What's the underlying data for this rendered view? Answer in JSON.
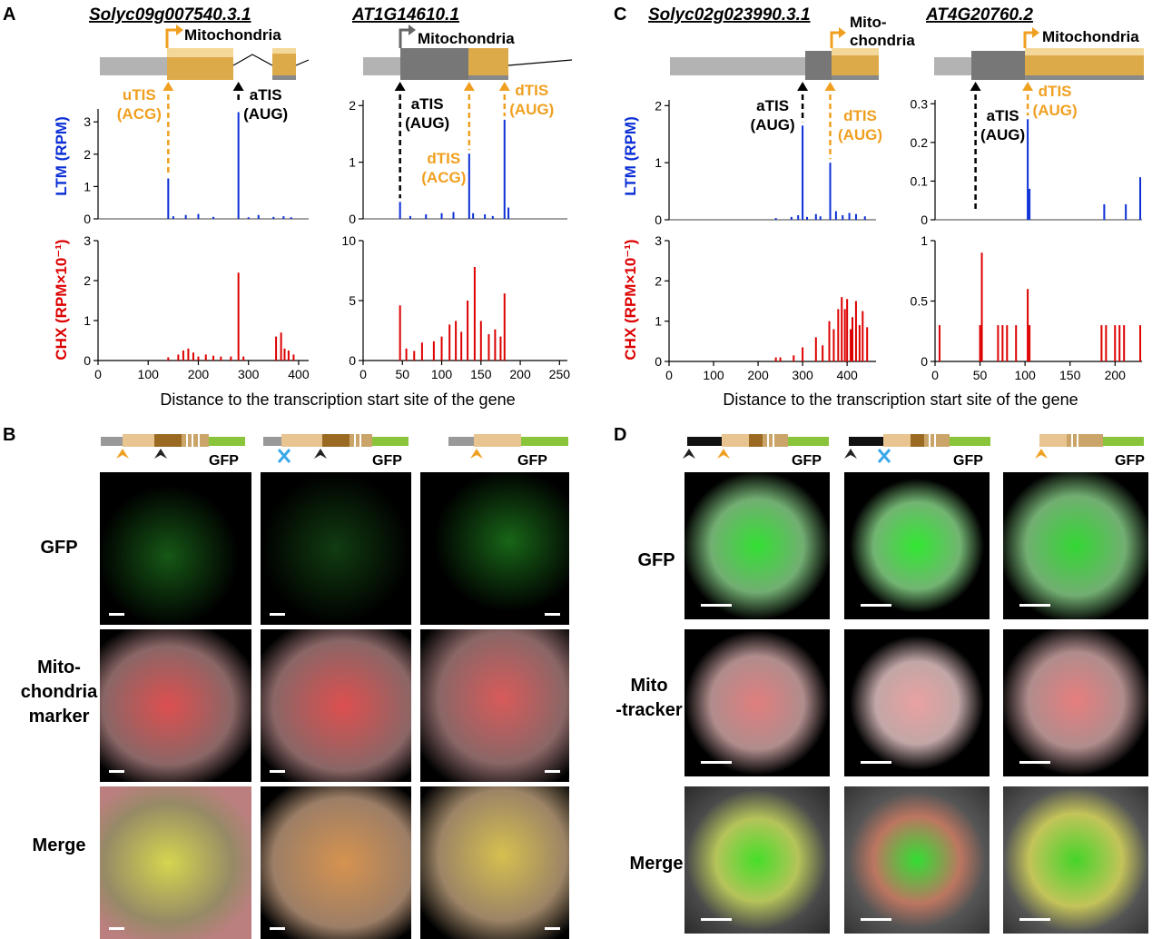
{
  "panels": {
    "A": {
      "letter": "A",
      "genes": [
        {
          "id": "Solyc09g007540.3.1",
          "mito_label": "Mitochondria",
          "tis": [
            {
              "name": "uTIS",
              "codon": "(ACG)",
              "color": "#f0a020",
              "pos": 140
            },
            {
              "name": "aTIS",
              "codon": "(AUG)",
              "color": "#000000",
              "pos": 280
            }
          ],
          "ltm": {
            "ylabel": "LTM (RPM)",
            "ylim": [
              0,
              3.4
            ],
            "yticks": [
              0,
              1,
              2,
              3
            ],
            "color": "#0b2fd6",
            "peaks": [
              [
                140,
                1.25
              ],
              [
                280,
                3.3
              ],
              [
                150,
                0.08
              ],
              [
                175,
                0.12
              ],
              [
                200,
                0.15
              ],
              [
                230,
                0.06
              ],
              [
                300,
                0.05
              ],
              [
                320,
                0.12
              ],
              [
                350,
                0.06
              ],
              [
                370,
                0.08
              ],
              [
                385,
                0.05
              ]
            ]
          },
          "chx": {
            "ylabel": "CHX (RPM×10⁻¹)",
            "ylim": [
              0,
              3
            ],
            "yticks": [
              0,
              1,
              2,
              3
            ],
            "color": "#dd0000",
            "peaks": [
              [
                140,
                0.08
              ],
              [
                160,
                0.15
              ],
              [
                170,
                0.25
              ],
              [
                180,
                0.3
              ],
              [
                190,
                0.2
              ],
              [
                200,
                0.1
              ],
              [
                215,
                0.15
              ],
              [
                230,
                0.12
              ],
              [
                245,
                0.1
              ],
              [
                265,
                0.1
              ],
              [
                280,
                2.2
              ],
              [
                290,
                0.1
              ],
              [
                355,
                0.6
              ],
              [
                365,
                0.7
              ],
              [
                372,
                0.3
              ],
              [
                380,
                0.25
              ],
              [
                390,
                0.15
              ]
            ]
          },
          "xlim": [
            0,
            420
          ],
          "xticks": [
            0,
            100,
            200,
            300,
            400
          ]
        },
        {
          "id": "AT1G14610.1",
          "mito_label": "Mitochondria",
          "tis": [
            {
              "name": "aTIS",
              "codon": "(AUG)",
              "color": "#000000",
              "pos": 47
            },
            {
              "name": "dTIS",
              "codon": "(ACG)",
              "color": "#f0a020",
              "pos": 135
            },
            {
              "name": "dTIS",
              "codon": "(AUG)",
              "color": "#f0a020",
              "pos": 180
            }
          ],
          "ltm": {
            "ylim": [
              0,
              2.1
            ],
            "yticks": [
              0,
              1,
              2
            ],
            "color": "#0b2fd6",
            "peaks": [
              [
                47,
                0.3
              ],
              [
                60,
                0.05
              ],
              [
                80,
                0.08
              ],
              [
                100,
                0.1
              ],
              [
                115,
                0.12
              ],
              [
                135,
                1.15
              ],
              [
                140,
                0.1
              ],
              [
                155,
                0.08
              ],
              [
                165,
                0.05
              ],
              [
                180,
                1.75
              ],
              [
                185,
                0.2
              ]
            ]
          },
          "chx": {
            "ylim": [
              0,
              10
            ],
            "yticks": [
              0,
              5,
              10
            ],
            "color": "#dd0000",
            "peaks": [
              [
                47,
                4.6
              ],
              [
                55,
                1.0
              ],
              [
                65,
                0.8
              ],
              [
                75,
                1.5
              ],
              [
                90,
                1.6
              ],
              [
                100,
                2.0
              ],
              [
                110,
                3.0
              ],
              [
                118,
                3.3
              ],
              [
                125,
                2.4
              ],
              [
                133,
                5.0
              ],
              [
                142,
                7.8
              ],
              [
                150,
                3.3
              ],
              [
                160,
                2.2
              ],
              [
                168,
                2.6
              ],
              [
                175,
                2.0
              ],
              [
                180,
                5.6
              ]
            ]
          },
          "xlim": [
            0,
            260
          ],
          "xticks": [
            0,
            50,
            100,
            150,
            200,
            250
          ]
        }
      ],
      "xlabel": "Distance to the transcription start site of the gene"
    },
    "B": {
      "letter": "B",
      "row_labels": [
        "GFP",
        "Mito-\nchondria\nmarker",
        "Merge"
      ],
      "construct_label": "GFP"
    },
    "C": {
      "letter": "C",
      "genes": [
        {
          "id": "Solyc02g023990.3.1",
          "mito_label": "Mito-\nchondria",
          "tis": [
            {
              "name": "aTIS",
              "codon": "(AUG)",
              "color": "#000000",
              "pos": 300
            },
            {
              "name": "dTIS",
              "codon": "(AUG)",
              "color": "#f0a020",
              "pos": 362
            }
          ],
          "ltm": {
            "ylabel": "LTM (RPM)",
            "ylim": [
              0,
              2.1
            ],
            "yticks": [
              0,
              1,
              2
            ],
            "color": "#0b2fd6",
            "peaks": [
              [
                240,
                0.03
              ],
              [
                275,
                0.05
              ],
              [
                290,
                0.08
              ],
              [
                300,
                1.65
              ],
              [
                310,
                0.05
              ],
              [
                330,
                0.1
              ],
              [
                340,
                0.06
              ],
              [
                362,
                1.0
              ],
              [
                375,
                0.15
              ],
              [
                390,
                0.08
              ],
              [
                405,
                0.12
              ],
              [
                420,
                0.1
              ],
              [
                440,
                0.06
              ]
            ]
          },
          "chx": {
            "ylabel": "CHX (RPM×10⁻¹)",
            "ylim": [
              0,
              3
            ],
            "yticks": [
              0,
              1,
              2,
              3
            ],
            "color": "#dd0000",
            "peaks": [
              [
                240,
                0.1
              ],
              [
                250,
                0.1
              ],
              [
                280,
                0.15
              ],
              [
                300,
                0.35
              ],
              [
                330,
                0.6
              ],
              [
                345,
                0.4
              ],
              [
                360,
                1.0
              ],
              [
                370,
                0.8
              ],
              [
                380,
                1.3
              ],
              [
                388,
                1.6
              ],
              [
                395,
                1.3
              ],
              [
                400,
                1.55
              ],
              [
                408,
                0.8
              ],
              [
                412,
                1.1
              ],
              [
                420,
                1.5
              ],
              [
                428,
                0.9
              ],
              [
                435,
                1.25
              ],
              [
                445,
                0.85
              ]
            ]
          },
          "xlim": [
            0,
            465
          ],
          "xticks": [
            0,
            100,
            200,
            300,
            400
          ]
        },
        {
          "id": "AT4G20760.2",
          "mito_label": "Mitochondria",
          "tis": [
            {
              "name": "aTIS",
              "codon": "(AUG)",
              "color": "#000000",
              "pos": 45
            },
            {
              "name": "dTIS",
              "codon": "(AUG)",
              "color": "#f0a020",
              "pos": 103
            }
          ],
          "ltm": {
            "ylim": [
              0,
              0.31
            ],
            "yticks": [
              0,
              0.1,
              0.2,
              0.3
            ],
            "color": "#0b2fd6",
            "peaks": [
              [
                103,
                0.26
              ],
              [
                105,
                0.08
              ],
              [
                188,
                0.04
              ],
              [
                212,
                0.04
              ],
              [
                228,
                0.11
              ]
            ]
          },
          "chx": {
            "ylim": [
              0,
              1
            ],
            "yticks": [
              0,
              0.5,
              1
            ],
            "color": "#dd0000",
            "peaks": [
              [
                5,
                0.3
              ],
              [
                50,
                0.3
              ],
              [
                52,
                0.9
              ],
              [
                70,
                0.3
              ],
              [
                75,
                0.3
              ],
              [
                80,
                0.3
              ],
              [
                90,
                0.3
              ],
              [
                103,
                0.6
              ],
              [
                105,
                0.3
              ],
              [
                185,
                0.3
              ],
              [
                190,
                0.3
              ],
              [
                200,
                0.3
              ],
              [
                205,
                0.3
              ],
              [
                210,
                0.3
              ],
              [
                228,
                0.3
              ]
            ]
          },
          "xlim": [
            0,
            230
          ],
          "xticks": [
            0,
            50,
            100,
            150,
            200
          ]
        }
      ],
      "xlabel": "Distance to the transcription start site of the gene"
    },
    "D": {
      "letter": "D",
      "row_labels": [
        "GFP",
        "Mito\n-tracker",
        "Merge"
      ],
      "construct_label": "GFP"
    }
  },
  "colors": {
    "orange": "#f0a020",
    "blue": "#0b2fd6",
    "red": "#dd0000",
    "green": "#1fd21f",
    "cyan": "#3aa8e8"
  }
}
